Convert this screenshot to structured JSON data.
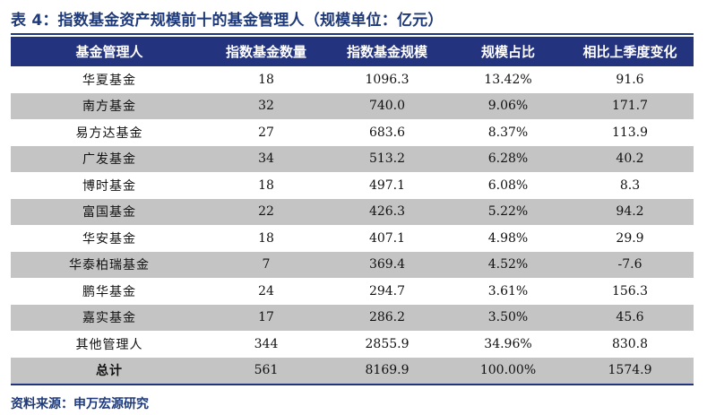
{
  "title": "表 4：指数基金资产规模前十的基金管理人（规模单位：亿元）",
  "columns": [
    "基金管理人",
    "指数基金数量",
    "指数基金规模",
    "规模占比",
    "相比上季度变化"
  ],
  "rows": [
    [
      "华夏基金",
      "18",
      "1096.3",
      "13.42%",
      "91.6"
    ],
    [
      "南方基金",
      "32",
      "740.0",
      "9.06%",
      "171.7"
    ],
    [
      "易方达基金",
      "27",
      "683.6",
      "8.37%",
      "113.9"
    ],
    [
      "广发基金",
      "34",
      "513.2",
      "6.28%",
      "40.2"
    ],
    [
      "博时基金",
      "18",
      "497.1",
      "6.08%",
      "8.3"
    ],
    [
      "富国基金",
      "22",
      "426.3",
      "5.22%",
      "94.2"
    ],
    [
      "华安基金",
      "18",
      "407.1",
      "4.98%",
      "29.9"
    ],
    [
      "华泰柏瑞基金",
      "7",
      "369.4",
      "4.52%",
      "-7.6"
    ],
    [
      "鹏华基金",
      "24",
      "294.7",
      "3.61%",
      "156.3"
    ],
    [
      "嘉实基金",
      "17",
      "286.2",
      "3.50%",
      "45.6"
    ],
    [
      "其他管理人",
      "344",
      "2855.9",
      "34.96%",
      "830.8"
    ],
    [
      "总计",
      "561",
      "8169.9",
      "100.00%",
      "1574.9"
    ]
  ],
  "source": "资料来源：申万宏源研究",
  "colors": {
    "header_bg": "#23337d",
    "title": "#1f3a7a",
    "stripe": "#c4c4c4"
  }
}
